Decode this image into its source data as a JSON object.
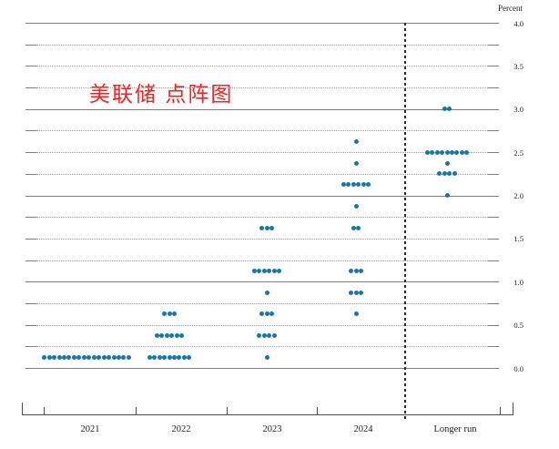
{
  "title_overlay": "美联储 点阵图",
  "axis": {
    "unit_label": "Percent",
    "y_tick_labels": [
      "4.0",
      "3.5",
      "3.0",
      "2.5",
      "2.0",
      "1.5",
      "1.0",
      "0.5",
      "0.0"
    ],
    "x_labels": [
      "2021",
      "2022",
      "2023",
      "2024",
      "Longer run"
    ]
  },
  "colors": {
    "dot": "#1678a8",
    "overlay_text": "#f52020",
    "grid_solid": "#7d7d7d",
    "grid_dotted": "#9b9b9b"
  },
  "chart_data": {
    "type": "scatter",
    "title": "美联储 点阵图 (FOMC dot plot)",
    "ylabel": "Percent",
    "ylim": [
      0.0,
      4.0
    ],
    "grid": "solid lines at whole percents, dotted lines at quarter-percent steps",
    "legend_position": "none",
    "categories": [
      "2021",
      "2022",
      "2023",
      "2024",
      "Longer run"
    ],
    "series": [
      {
        "name": "2021",
        "dots": [
          {
            "rate": 0.125,
            "count": 18
          }
        ]
      },
      {
        "name": "2022",
        "dots": [
          {
            "rate": 0.125,
            "count": 9
          },
          {
            "rate": 0.375,
            "count": 6
          },
          {
            "rate": 0.625,
            "count": 3
          }
        ]
      },
      {
        "name": "2023",
        "dots": [
          {
            "rate": 0.125,
            "count": 1
          },
          {
            "rate": 0.375,
            "count": 4
          },
          {
            "rate": 0.625,
            "count": 3
          },
          {
            "rate": 0.875,
            "count": 1
          },
          {
            "rate": 1.125,
            "count": 6
          },
          {
            "rate": 1.625,
            "count": 3
          }
        ]
      },
      {
        "name": "2024",
        "dots": [
          {
            "rate": 0.625,
            "count": 1
          },
          {
            "rate": 0.875,
            "count": 3
          },
          {
            "rate": 1.125,
            "count": 3
          },
          {
            "rate": 1.625,
            "count": 2
          },
          {
            "rate": 1.875,
            "count": 1
          },
          {
            "rate": 2.125,
            "count": 6
          },
          {
            "rate": 2.375,
            "count": 1
          },
          {
            "rate": 2.625,
            "count": 1
          }
        ]
      },
      {
        "name": "Longer run",
        "dots": [
          {
            "rate": 2.0,
            "count": 1
          },
          {
            "rate": 2.25,
            "count": 4
          },
          {
            "rate": 2.375,
            "count": 1
          },
          {
            "rate": 2.5,
            "count": 9
          },
          {
            "rate": 3.0,
            "count": 2
          }
        ]
      }
    ]
  }
}
